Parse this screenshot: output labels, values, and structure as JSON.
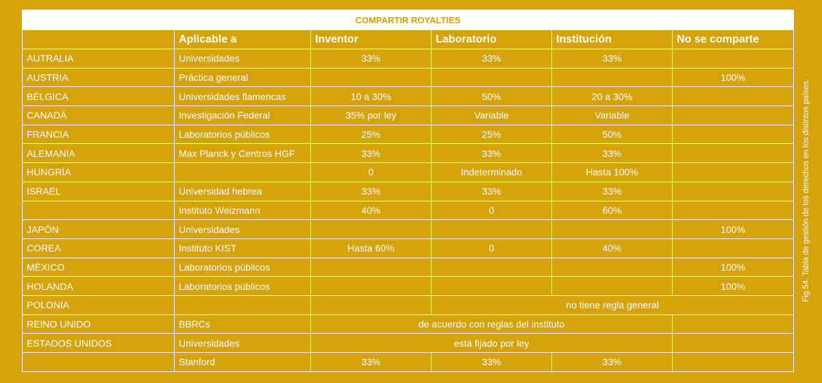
{
  "table": {
    "title": "COMPARTIR ROYALTIES",
    "headers": [
      "",
      "Aplicable a",
      "Inventor",
      "Laboratorio",
      "Institución",
      "No se comparte"
    ],
    "rows": [
      {
        "country": "AUTRALIA",
        "applicable": "Universidades",
        "inventor": "33%",
        "laboratorio": "33%",
        "institucion": "33%",
        "no_comparte": ""
      },
      {
        "country": "AUSTRIA",
        "applicable": "Práctica general",
        "inventor": "",
        "laboratorio": "",
        "institucion": "",
        "no_comparte": "100%"
      },
      {
        "country": "BÉLGICA",
        "applicable": "Universidades flamencas",
        "inventor": "10 a 30%",
        "laboratorio": "50%",
        "institucion": "20 a 30%",
        "no_comparte": ""
      },
      {
        "country": "CANADÁ",
        "applicable": "Investigación Federal",
        "inventor": "35% por ley",
        "laboratorio": "Variable",
        "institucion": "Variable",
        "no_comparte": ""
      },
      {
        "country": "FRANCIA",
        "applicable": "Laboratorios públicos",
        "inventor": "25%",
        "laboratorio": "25%",
        "institucion": "50%",
        "no_comparte": ""
      },
      {
        "country": "ALEMANIA",
        "applicable": "Max Planck y Centros HGF",
        "inventor": "33%",
        "laboratorio": "33%",
        "institucion": "33%",
        "no_comparte": ""
      },
      {
        "country": "HUNGRÍA",
        "applicable": "",
        "inventor": "0",
        "laboratorio": "Indeterminado",
        "institucion": "Hasta 100%",
        "no_comparte": ""
      },
      {
        "country": "ISRAEL",
        "applicable": "Universidad hebrea",
        "inventor": "33%",
        "laboratorio": "33%",
        "institucion": "33%",
        "no_comparte": ""
      },
      {
        "country": "",
        "applicable": "Instituto Weizmann",
        "inventor": "40%",
        "laboratorio": "0",
        "institucion": "60%",
        "no_comparte": ""
      },
      {
        "country": "JAPÓN",
        "applicable": "Universidades",
        "inventor": "",
        "laboratorio": "",
        "institucion": "",
        "no_comparte": "100%"
      },
      {
        "country": "COREA",
        "applicable": "Instituto KIST",
        "inventor": "Hasta 60%",
        "laboratorio": "0",
        "institucion": "40%",
        "no_comparte": ""
      },
      {
        "country": "MÉXICO",
        "applicable": "Laboratorios públicos",
        "inventor": "",
        "laboratorio": "",
        "institucion": "",
        "no_comparte": "100%"
      },
      {
        "country": "HOLANDA",
        "applicable": "Laboratorios públicos",
        "inventor": "",
        "laboratorio": "",
        "institucion": "",
        "no_comparte": "100%"
      }
    ],
    "polonia": {
      "country": "POLONIA",
      "applicable": "",
      "inventor": "",
      "span_text": "no tiene regla general"
    },
    "reino_unido": {
      "country": "REINO UNIDO",
      "applicable": "BBRCs",
      "span_text": "de acuerdo con reglas del instituto",
      "no_comparte": ""
    },
    "estados_unidos": {
      "country": "ESTADOS UNIDOS",
      "applicable": "Universidades",
      "span_text": "está fijado por ley",
      "no_comparte": ""
    },
    "stanford": {
      "country": "",
      "applicable": "Stanford",
      "inventor": "33%",
      "laboratorio": "33%",
      "institucion": "33%",
      "no_comparte": ""
    }
  },
  "caption": "Fig.54. Tabla de gestión de los derechos en los distintos países.",
  "colors": {
    "background": "#d4a20b",
    "line": "#ffffff",
    "title_text": "#d4a20b"
  }
}
